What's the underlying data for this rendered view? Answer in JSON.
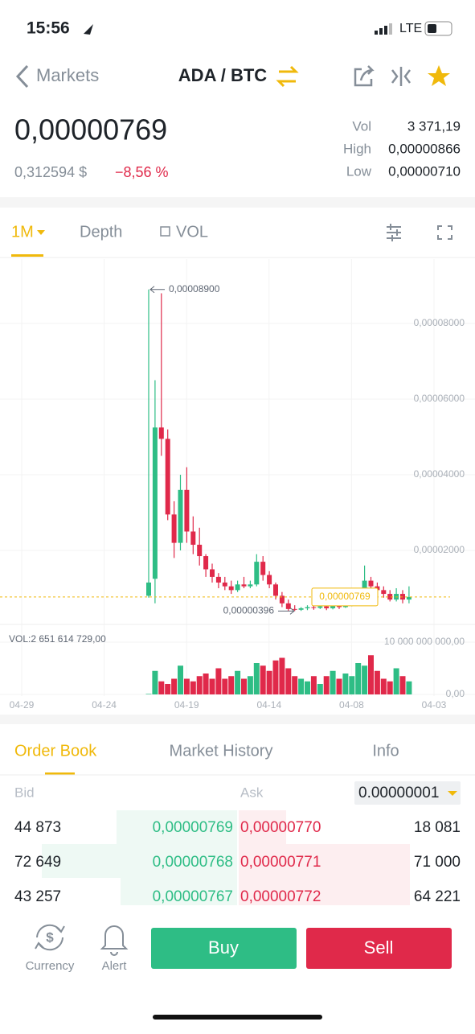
{
  "status_bar": {
    "time": "15:56",
    "network": "LTE"
  },
  "header": {
    "back": "Markets",
    "pair": "ADA / BTC"
  },
  "ticker": {
    "price": "0,00000769",
    "fiat": "0,312594 $",
    "change": "−8,56 %",
    "stats": [
      {
        "label": "Vol",
        "value": "3 371,19"
      },
      {
        "label": "High",
        "value": "0,00000866"
      },
      {
        "label": "Low",
        "value": "0,00000710"
      }
    ]
  },
  "chart_tabs": [
    "1M",
    "Depth",
    "VOL"
  ],
  "chart_data": {
    "type": "candlestick",
    "up_color": "#2ebd85",
    "down_color": "#e0294a",
    "grid": true,
    "xlabels": [
      "04-29",
      "04-24",
      "04-19",
      "04-14",
      "04-08",
      "04-03"
    ],
    "open": [
      8e-06,
      1.25e-05,
      5.25e-05,
      4.95e-05,
      2.95e-05,
      2.2e-05,
      3.6e-05,
      2.5e-05,
      2.15e-05,
      1.85e-05,
      1.5e-05,
      1.3e-05,
      1.15e-05,
      1.05e-05,
      9.5e-06,
      1.1e-05,
      1.05e-05,
      1.1e-05,
      1.7e-05,
      1.35e-05,
      1.1e-05,
      8e-06,
      6e-06,
      4.5e-06,
      4.3e-06,
      4.7e-06,
      5e-06,
      4.8e-06,
      5.2e-06,
      4.7e-06,
      5.3e-06,
      5e-06,
      5.6e-06,
      7e-06,
      9e-06,
      1.2e-05,
      1.05e-05,
      9.5e-06,
      8.5e-06,
      7e-06,
      8.5e-06,
      7e-06
    ],
    "high": [
      8.9e-05,
      6.5e-05,
      8.8e-05,
      5.2e-05,
      3.3e-05,
      4e-05,
      4.2e-05,
      2.9e-05,
      2.6e-05,
      1.9e-05,
      1.65e-05,
      1.4e-05,
      1.3e-05,
      1.2e-05,
      1.2e-05,
      1.3e-05,
      1.2e-05,
      1.9e-05,
      1.85e-05,
      1.45e-05,
      1.15e-05,
      9e-06,
      7e-06,
      5.5e-06,
      5e-06,
      5.5e-06,
      5.6e-06,
      6e-06,
      5.6e-06,
      6e-06,
      5.8e-06,
      6.5e-06,
      8e-06,
      1e-05,
      1.6e-05,
      1.3e-05,
      1.15e-05,
      1.05e-05,
      9.5e-06,
      1e-05,
      9.5e-06,
      1.05e-05
    ],
    "low": [
      7.5e-06,
      6e-06,
      4.5e-05,
      2.8e-05,
      1.8e-05,
      2e-05,
      2.2e-05,
      1.9e-05,
      1.6e-05,
      1.3e-05,
      1.15e-05,
      1e-05,
      9.5e-06,
      8.5e-06,
      9e-06,
      1e-05,
      1e-05,
      1.05e-05,
      1.2e-05,
      1e-05,
      7e-06,
      5e-06,
      3.96e-06,
      3.96e-06,
      4e-06,
      4.2e-06,
      4.3e-06,
      4.5e-06,
      4.2e-06,
      4.4e-06,
      4.5e-06,
      4.8e-06,
      5.2e-06,
      6.5e-06,
      8.5e-06,
      9.5e-06,
      8.5e-06,
      7.5e-06,
      6.5e-06,
      6.5e-06,
      6e-06,
      6e-06
    ],
    "close": [
      1.15e-05,
      5.25e-05,
      4.95e-05,
      2.95e-05,
      2.2e-05,
      3.6e-05,
      2.5e-05,
      2.15e-05,
      1.85e-05,
      1.5e-05,
      1.3e-05,
      1.15e-05,
      1.05e-05,
      9.5e-06,
      1.1e-05,
      1.05e-05,
      1.1e-05,
      1.7e-05,
      1.35e-05,
      1.1e-05,
      8e-06,
      6e-06,
      4.5e-06,
      4.3e-06,
      4.7e-06,
      5e-06,
      4.8e-06,
      5.2e-06,
      4.7e-06,
      5.3e-06,
      5e-06,
      5.6e-06,
      7e-06,
      9e-06,
      1.2e-05,
      1.05e-05,
      9.5e-06,
      8.5e-06,
      7e-06,
      8.5e-06,
      7e-06,
      7.69e-06
    ],
    "volume": [
      100000000.0,
      4500000000.0,
      2500000000.0,
      2000000000.0,
      3000000000.0,
      5500000000.0,
      3000000000.0,
      2500000000.0,
      3500000000.0,
      4000000000.0,
      3000000000.0,
      5000000000.0,
      3000000000.0,
      3500000000.0,
      4500000000.0,
      3000000000.0,
      3500000000.0,
      6000000000.0,
      5500000000.0,
      4500000000.0,
      6500000000.0,
      7000000000.0,
      5000000000.0,
      3500000000.0,
      3000000000.0,
      2500000000.0,
      3500000000.0,
      2000000000.0,
      3500000000.0,
      4500000000.0,
      3000000000.0,
      4000000000.0,
      3500000000.0,
      6000000000.0,
      5500000000.0,
      7500000000.0,
      4500000000.0,
      3000000000.0,
      2500000000.0,
      5000000000.0,
      3500000000.0,
      2500000000.0
    ],
    "ylim": [
      0,
      9.32e-05
    ],
    "yticks": [
      {
        "value": 8e-05,
        "label": "0,00008000"
      },
      {
        "value": 6e-05,
        "label": "0,00006000"
      },
      {
        "value": 4e-05,
        "label": "0,00004000"
      },
      {
        "value": 2e-05,
        "label": "0,00002000"
      }
    ],
    "vol_ylim": [
      0,
      10000000000
    ],
    "vol_yticks": [
      {
        "value": 10000000000,
        "label": "10 000 000 000,00"
      },
      {
        "value": 0,
        "label": "0,00"
      }
    ],
    "vol_label": "VOL:2 651 614 729,00",
    "annotations": [
      {
        "value": 8.9e-05,
        "label": "0,00008900"
      },
      {
        "value": 3.96e-06,
        "label": "0,00000396"
      }
    ],
    "last_price": {
      "value": 7.69e-06,
      "label": "0,00000769"
    }
  },
  "order_book": {
    "tabs": [
      "Order Book",
      "Market History",
      "Info"
    ],
    "bid": "Bid",
    "ask": "Ask",
    "precision": "0.00000001",
    "rows": [
      [
        "44 873",
        "0,00000769",
        "0,00000770",
        "18 081"
      ],
      [
        "72 649",
        "0,00000768",
        "0,00000771",
        "71 000"
      ],
      [
        "43 257",
        "0,00000767",
        "0,00000772",
        "64 221"
      ]
    ]
  },
  "bottom_bar": {
    "currency": "Currency",
    "alert": "Alert",
    "buy": "Buy",
    "sell": "Sell"
  }
}
